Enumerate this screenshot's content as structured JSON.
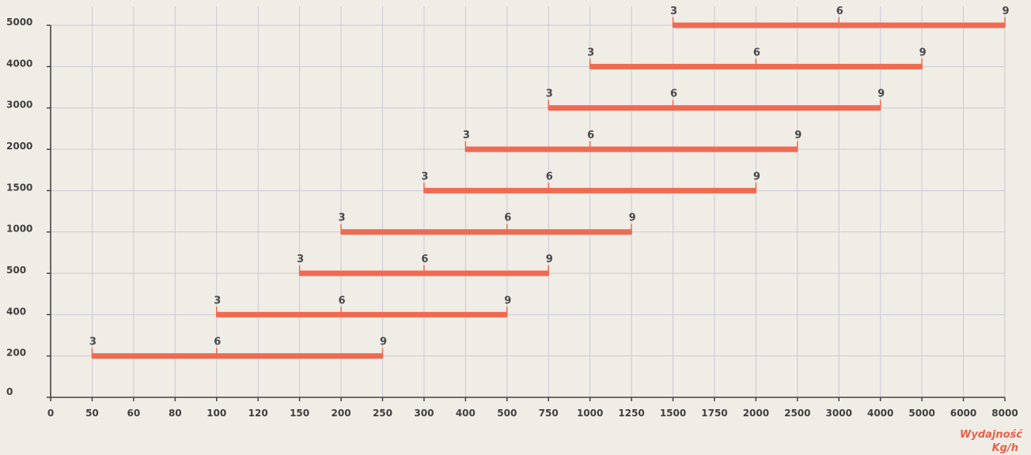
{
  "chart_data": {
    "type": "bar",
    "orientation": "horizontal-range",
    "y_categories": [
      "0",
      "200",
      "400",
      "500",
      "1000",
      "1500",
      "2000",
      "3000",
      "4000",
      "5000"
    ],
    "x_ticks": [
      "0",
      "50",
      "60",
      "80",
      "100",
      "120",
      "150",
      "200",
      "250",
      "300",
      "400",
      "500",
      "750",
      "1000",
      "1250",
      "1500",
      "1750",
      "2000",
      "2500",
      "3000",
      "4000",
      "5000",
      "6000",
      "8000"
    ],
    "grid": true,
    "x_axis_label": "Wydajność",
    "x_axis_unit": "Kg/h",
    "bars": [
      {
        "y": "200",
        "start": 50,
        "end": 250,
        "marks": [
          {
            "label": "3",
            "value": 50
          },
          {
            "label": "6",
            "value": 100
          },
          {
            "label": "9",
            "value": 250
          }
        ]
      },
      {
        "y": "400",
        "start": 100,
        "end": 500,
        "marks": [
          {
            "label": "3",
            "value": 100
          },
          {
            "label": "6",
            "value": 200
          },
          {
            "label": "9",
            "value": 500
          }
        ]
      },
      {
        "y": "500",
        "start": 150,
        "end": 750,
        "marks": [
          {
            "label": "3",
            "value": 150
          },
          {
            "label": "6",
            "value": 300
          },
          {
            "label": "9",
            "value": 750
          }
        ]
      },
      {
        "y": "1000",
        "start": 200,
        "end": 1250,
        "marks": [
          {
            "label": "3",
            "value": 200
          },
          {
            "label": "6",
            "value": 500
          },
          {
            "label": "9",
            "value": 1250
          }
        ]
      },
      {
        "y": "1500",
        "start": 300,
        "end": 2000,
        "marks": [
          {
            "label": "3",
            "value": 300
          },
          {
            "label": "6",
            "value": 750
          },
          {
            "label": "9",
            "value": 2000
          }
        ]
      },
      {
        "y": "2000",
        "start": 400,
        "end": 2500,
        "marks": [
          {
            "label": "3",
            "value": 400
          },
          {
            "label": "6",
            "value": 1000
          },
          {
            "label": "9",
            "value": 2500
          }
        ]
      },
      {
        "y": "3000",
        "start": 750,
        "end": 4000,
        "marks": [
          {
            "label": "3",
            "value": 750
          },
          {
            "label": "6",
            "value": 1500
          },
          {
            "label": "9",
            "value": 4000
          }
        ]
      },
      {
        "y": "4000",
        "start": 1000,
        "end": 5000,
        "marks": [
          {
            "label": "3",
            "value": 1000
          },
          {
            "label": "6",
            "value": 2000
          },
          {
            "label": "9",
            "value": 5000
          }
        ]
      },
      {
        "y": "5000",
        "start": 1500,
        "end": 8000,
        "marks": [
          {
            "label": "3",
            "value": 1500
          },
          {
            "label": "6",
            "value": 3000
          },
          {
            "label": "9",
            "value": 8000
          }
        ]
      }
    ]
  },
  "colors": {
    "background": "#f0ede6",
    "bar": "#ef6a52",
    "grid": "#c9c9d6",
    "axis": "#444444",
    "label": "#3f3f3f",
    "unit_label": "#e8604c"
  }
}
